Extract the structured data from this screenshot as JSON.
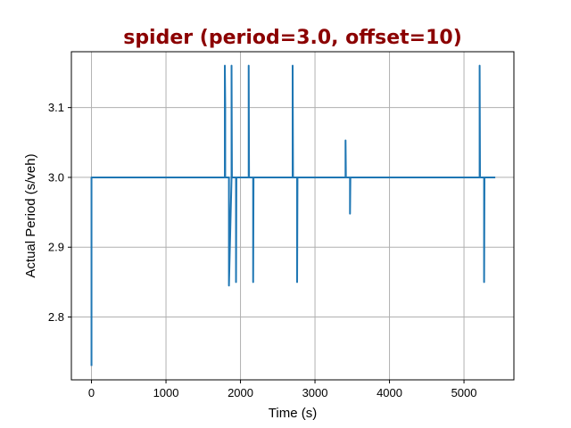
{
  "chart_data": {
    "type": "line",
    "title": "spider (period=3.0, offset=10)",
    "xlabel": "Time (s)",
    "ylabel": "Actual Period (s/veh)",
    "xlim": [
      -270,
      5670
    ],
    "ylim": [
      2.71,
      3.18
    ],
    "xticks": [
      0,
      1000,
      2000,
      3000,
      4000,
      5000
    ],
    "xtick_labels": [
      "0",
      "1000",
      "2000",
      "3000",
      "4000",
      "5000"
    ],
    "yticks": [
      2.8,
      2.9,
      3.0,
      3.1
    ],
    "ytick_labels": [
      "2.8",
      "2.9",
      "3.0",
      "3.1"
    ],
    "grid": true,
    "colors": {
      "series": "#1f77b4",
      "title": "#8b0000"
    },
    "series": [
      {
        "x": [
          0,
          0,
          0,
          1790,
          1790,
          1795,
          1795,
          1800,
          1845,
          1845,
          1880,
          1880,
          1885,
          1940,
          1940,
          1945,
          2110,
          2110,
          2115,
          2170,
          2170,
          2175,
          2700,
          2700,
          2705,
          2760,
          2760,
          2765,
          3410,
          3410,
          3415,
          3470,
          3470,
          3475,
          5210,
          5210,
          5215,
          5270,
          5270,
          5275,
          5420
        ],
        "y": [
          2.73,
          3.0,
          3.0,
          3.0,
          3.16,
          3.105,
          3.0,
          3.0,
          3.0,
          2.845,
          3.0,
          3.16,
          3.0,
          3.0,
          2.85,
          3.0,
          3.0,
          3.16,
          3.0,
          3.0,
          2.85,
          3.0,
          3.0,
          3.16,
          3.0,
          3.0,
          2.85,
          3.0,
          3.0,
          3.053,
          3.0,
          3.0,
          2.948,
          3.0,
          3.0,
          3.16,
          3.0,
          3.0,
          2.85,
          3.0,
          3.0
        ]
      }
    ]
  }
}
